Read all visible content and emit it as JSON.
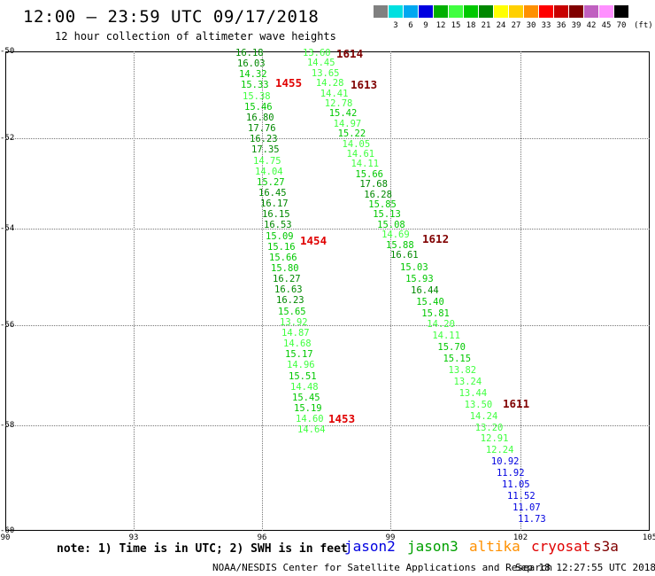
{
  "header": {
    "title": "12:00 — 23:59 UTC 09/17/2018",
    "subtitle": "12 hour collection of altimeter wave heights"
  },
  "colorbar": {
    "unit": "(ft)",
    "swatches": [
      {
        "color": "#808080",
        "label": ""
      },
      {
        "color": "#00e0e0",
        "label": "3"
      },
      {
        "color": "#00a8f0",
        "label": "6"
      },
      {
        "color": "#0000e0",
        "label": "9"
      },
      {
        "color": "#00b000",
        "label": "12"
      },
      {
        "color": "#40ff40",
        "label": "15"
      },
      {
        "color": "#00c800",
        "label": "18"
      },
      {
        "color": "#008800",
        "label": "21"
      },
      {
        "color": "#ffff00",
        "label": "24"
      },
      {
        "color": "#ffd000",
        "label": "27"
      },
      {
        "color": "#ff9000",
        "label": "30"
      },
      {
        "color": "#ff0000",
        "label": "33"
      },
      {
        "color": "#c80000",
        "label": "36"
      },
      {
        "color": "#800000",
        "label": "39"
      },
      {
        "color": "#c060c0",
        "label": "42"
      },
      {
        "color": "#ff90ff",
        "label": "45"
      },
      {
        "color": "#000000",
        "label": "70"
      }
    ]
  },
  "axes": {
    "lat_labels": [
      "-50",
      "-52",
      "-54",
      "-56",
      "-58",
      "-60"
    ],
    "lon_labels": [
      "90",
      "93",
      "96",
      "99",
      "102",
      "105"
    ]
  },
  "colors": {
    "dark_green": "#008800",
    "green": "#00c800",
    "light_green": "#40ff40",
    "blue": "#0000e0",
    "red": "#e00000",
    "dark_red": "#800000"
  },
  "tracks": [
    {
      "label": "1614",
      "color": "#800000"
    },
    {
      "label": "1455",
      "color": "#e00000"
    },
    {
      "label": "1613",
      "color": "#800000"
    },
    {
      "label": "1612",
      "color": "#800000"
    },
    {
      "label": "1454",
      "color": "#e00000"
    },
    {
      "label": "1611",
      "color": "#800000"
    },
    {
      "label": "1453",
      "color": "#e00000"
    }
  ],
  "obs_west": [
    {
      "v": "16.18",
      "c": "#008800"
    },
    {
      "v": "16.03",
      "c": "#008800"
    },
    {
      "v": "14.32",
      "c": "#00c800"
    },
    {
      "v": "15.33",
      "c": "#00c800"
    },
    {
      "v": "15.38",
      "c": "#40ff40"
    },
    {
      "v": "15.46",
      "c": "#00c800"
    },
    {
      "v": "16.80",
      "c": "#008800"
    },
    {
      "v": "17.76",
      "c": "#008800"
    },
    {
      "v": "16.23",
      "c": "#008800"
    },
    {
      "v": "17.35",
      "c": "#008800"
    },
    {
      "v": "14.75",
      "c": "#40ff40"
    },
    {
      "v": "14.04",
      "c": "#40ff40"
    },
    {
      "v": "15.27",
      "c": "#00c800"
    },
    {
      "v": "16.45",
      "c": "#008800"
    },
    {
      "v": "16.17",
      "c": "#008800"
    },
    {
      "v": "16.15",
      "c": "#008800"
    },
    {
      "v": "16.53",
      "c": "#008800"
    },
    {
      "v": "15.09",
      "c": "#00c800"
    },
    {
      "v": "15.16",
      "c": "#00c800"
    },
    {
      "v": "15.66",
      "c": "#00c800"
    },
    {
      "v": "15.80",
      "c": "#00c800"
    },
    {
      "v": "16.27",
      "c": "#008800"
    },
    {
      "v": "16.63",
      "c": "#008800"
    },
    {
      "v": "16.23",
      "c": "#008800"
    },
    {
      "v": "15.65",
      "c": "#00c800"
    },
    {
      "v": "13.92",
      "c": "#40ff40"
    },
    {
      "v": "14.87",
      "c": "#40ff40"
    },
    {
      "v": "14.68",
      "c": "#40ff40"
    },
    {
      "v": "15.17",
      "c": "#00c800"
    },
    {
      "v": "14.96",
      "c": "#40ff40"
    },
    {
      "v": "15.51",
      "c": "#00c800"
    },
    {
      "v": "14.48",
      "c": "#40ff40"
    },
    {
      "v": "15.45",
      "c": "#00c800"
    },
    {
      "v": "15.19",
      "c": "#00c800"
    },
    {
      "v": "14.60",
      "c": "#40ff40"
    },
    {
      "v": "14.64",
      "c": "#40ff40"
    }
  ],
  "obs_east": [
    {
      "v": "13.60",
      "c": "#40ff40"
    },
    {
      "v": "14.45",
      "c": "#40ff40"
    },
    {
      "v": "13.65",
      "c": "#40ff40"
    },
    {
      "v": "14.28",
      "c": "#40ff40"
    },
    {
      "v": "14.41",
      "c": "#40ff40"
    },
    {
      "v": "12.78",
      "c": "#40ff40"
    },
    {
      "v": "15.42",
      "c": "#00c800"
    },
    {
      "v": "14.97",
      "c": "#40ff40"
    },
    {
      "v": "15.22",
      "c": "#00c800"
    },
    {
      "v": "14.05",
      "c": "#40ff40"
    },
    {
      "v": "14.61",
      "c": "#40ff40"
    },
    {
      "v": "14.11",
      "c": "#40ff40"
    },
    {
      "v": "15.66",
      "c": "#00c800"
    },
    {
      "v": "17.68",
      "c": "#008800"
    },
    {
      "v": "16.28",
      "c": "#008800"
    },
    {
      "v": "15.85",
      "c": "#00c800"
    },
    {
      "v": "15.13",
      "c": "#00c800"
    },
    {
      "v": "15.08",
      "c": "#00c800"
    },
    {
      "v": "14.69",
      "c": "#40ff40"
    },
    {
      "v": "15.88",
      "c": "#00c800"
    },
    {
      "v": "16.61",
      "c": "#008800"
    },
    {
      "v": "15.03",
      "c": "#00c800"
    },
    {
      "v": "15.93",
      "c": "#00c800"
    },
    {
      "v": "16.44",
      "c": "#008800"
    },
    {
      "v": "15.40",
      "c": "#00c800"
    },
    {
      "v": "15.81",
      "c": "#00c800"
    },
    {
      "v": "14.20",
      "c": "#40ff40"
    },
    {
      "v": "14.11",
      "c": "#40ff40"
    },
    {
      "v": "15.70",
      "c": "#00c800"
    },
    {
      "v": "15.15",
      "c": "#00c800"
    },
    {
      "v": "13.82",
      "c": "#40ff40"
    },
    {
      "v": "13.24",
      "c": "#40ff40"
    },
    {
      "v": "13.44",
      "c": "#40ff40"
    },
    {
      "v": "13.50",
      "c": "#40ff40"
    },
    {
      "v": "14.24",
      "c": "#40ff40"
    },
    {
      "v": "13.20",
      "c": "#40ff40"
    },
    {
      "v": "12.91",
      "c": "#40ff40"
    },
    {
      "v": "12.24",
      "c": "#40ff40"
    },
    {
      "v": "10.92",
      "c": "#0000e0"
    },
    {
      "v": "11.92",
      "c": "#0000e0"
    },
    {
      "v": "11.05",
      "c": "#0000e0"
    },
    {
      "v": "11.52",
      "c": "#0000e0"
    },
    {
      "v": "11.07",
      "c": "#0000e0"
    },
    {
      "v": "11.73",
      "c": "#0000e0"
    }
  ],
  "footer": {
    "note": "note: 1) Time is in UTC; 2) SWH is in feet",
    "satellites": [
      {
        "name": "jason2",
        "color": "#0000e0"
      },
      {
        "name": "jason3",
        "color": "#00a000"
      },
      {
        "name": "altika",
        "color": "#ff9000"
      },
      {
        "name": "cryosat",
        "color": "#e00000"
      },
      {
        "name": "s3a",
        "color": "#800000"
      }
    ],
    "credit": "NOAA/NESDIS Center for Satellite Applications and Research",
    "timestamp": "Sep 18 12:27:55 UTC 2018"
  }
}
